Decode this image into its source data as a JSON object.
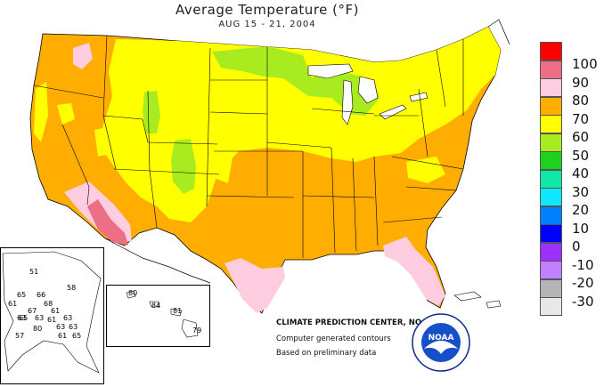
{
  "header": {
    "title": "Average Temperature (°F)",
    "subtitle": "AUG 15 - 21, 2004"
  },
  "legend": {
    "items": [
      {
        "label": "100",
        "color": "#ff0000"
      },
      {
        "label": "90",
        "color": "#ec6f86"
      },
      {
        "label": "80",
        "color": "#ffcce0"
      },
      {
        "label": "70",
        "color": "#ffad00"
      },
      {
        "label": "60",
        "color": "#ffff00"
      },
      {
        "label": "50",
        "color": "#a8ec20"
      },
      {
        "label": "40",
        "color": "#20d020"
      },
      {
        "label": "30",
        "color": "#10e8a8"
      },
      {
        "label": "20",
        "color": "#10e8ff"
      },
      {
        "label": "10",
        "color": "#0080ff"
      },
      {
        "label": "0",
        "color": "#0000ff"
      },
      {
        "label": "-10",
        "color": "#9b30ff"
      },
      {
        "label": "-20",
        "color": "#c080ff"
      },
      {
        "label": "-30",
        "color": "#b4b4b4"
      }
    ],
    "bottom_color": "#e8e8e8"
  },
  "footer": {
    "agency": "CLIMATE PREDICTION CENTER, NOAA",
    "note1": "Computer generated contours",
    "note2": "Based on preliminary data"
  },
  "logo": {
    "text": "NOAA"
  },
  "alaska": {
    "stations": [
      "51",
      "58",
      "65",
      "66",
      "68",
      "61",
      "67",
      "63",
      "61",
      "63",
      "65",
      "63",
      "61",
      "80",
      "63",
      "63",
      "57",
      "61",
      "65"
    ]
  },
  "hawaii": {
    "stations": [
      "80",
      "84",
      "81",
      "79"
    ]
  }
}
